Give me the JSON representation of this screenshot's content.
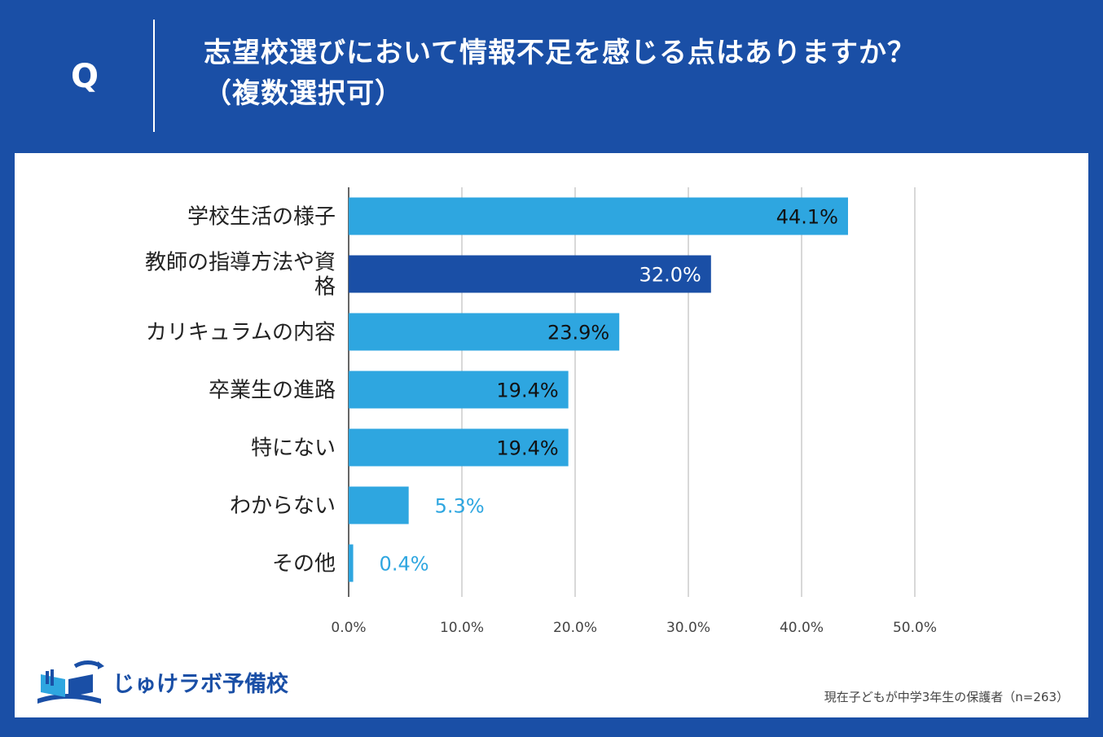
{
  "header": {
    "q_mark": "Q",
    "question_line1": "志望校選びにおいて情報不足を感じる点はありますか？",
    "question_line2": "（複数選択可）"
  },
  "colors": {
    "background": "#1a4fa6",
    "bar": "#2ea6e0",
    "highlight_bar": "#1a4fa6",
    "grid": "#cccccc",
    "panel": "#ffffff"
  },
  "chart_data": {
    "type": "bar",
    "orientation": "horizontal",
    "categories": [
      [
        "学校生活の様子"
      ],
      [
        "教師の指導方法や資",
        "格"
      ],
      [
        "カリキュラムの内容"
      ],
      [
        "卒業生の進路"
      ],
      [
        "特にない"
      ],
      [
        "わからない"
      ],
      [
        "その他"
      ]
    ],
    "values": [
      44.1,
      32.0,
      23.9,
      19.4,
      19.4,
      5.3,
      0.4
    ],
    "value_labels": [
      "44.1%",
      "32.0%",
      "23.9%",
      "19.4%",
      "19.4%",
      "5.3%",
      "0.4%"
    ],
    "highlight_index": 1,
    "xlim": [
      0,
      50
    ],
    "xticks": [
      0,
      10,
      20,
      30,
      40,
      50
    ],
    "xtick_labels": [
      "0.0%",
      "10.0%",
      "20.0%",
      "30.0%",
      "40.0%",
      "50.0%"
    ],
    "grid": true,
    "title": "志望校選びにおいて情報不足を感じる点はありますか？（複数選択可）"
  },
  "footer": {
    "logo_text": "じゅけラボ予備校",
    "source": "現在子どもが中学3年生の保護者（n=263）"
  }
}
